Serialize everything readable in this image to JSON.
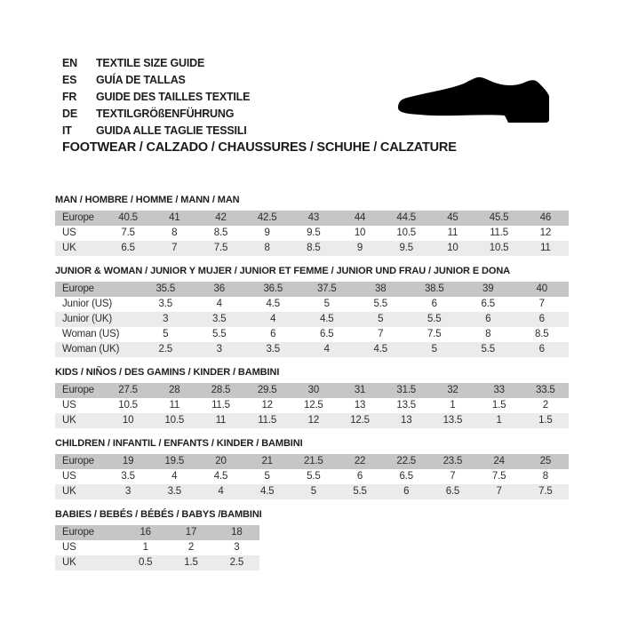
{
  "header": {
    "languages": [
      {
        "code": "EN",
        "label": "TEXTILE SIZE GUIDE"
      },
      {
        "code": "ES",
        "label": "GUÍA DE TALLAS"
      },
      {
        "code": "FR",
        "label": "GUIDE DES TAILLES TEXTILE"
      },
      {
        "code": "DE",
        "label": "TEXTILGRÖßENFÜHRUNG"
      },
      {
        "code": "IT",
        "label": "GUIDA ALLE TAGLIE TESSILI"
      }
    ],
    "category_line": "FOOTWEAR / CALZADO / CHAUSSURES / SCHUHE / CALZATURE",
    "icon": "dress-shoe-silhouette"
  },
  "colors": {
    "header_row_bg": "#c6c6c6",
    "alt_row_bg": "#ebebeb",
    "text": "#2e2e2e",
    "icon": "#000000"
  },
  "tables": [
    {
      "id": "man",
      "title": "MAN / HOMBRE / HOMME / MANN / MAN",
      "rows": [
        {
          "label": "Europe",
          "values": [
            "40.5",
            "41",
            "42",
            "42.5",
            "43",
            "44",
            "44.5",
            "45",
            "45.5",
            "46"
          ]
        },
        {
          "label": "US",
          "values": [
            "7.5",
            "8",
            "8.5",
            "9",
            "9.5",
            "10",
            "10.5",
            "11",
            "11.5",
            "12"
          ]
        },
        {
          "label": "UK",
          "values": [
            "6.5",
            "7",
            "7.5",
            "8",
            "8.5",
            "9",
            "9.5",
            "10",
            "10.5",
            "11"
          ]
        }
      ]
    },
    {
      "id": "junior-woman",
      "title": "JUNIOR & WOMAN / JUNIOR Y MUJER / JUNIOR ET FEMME / JUNIOR UND FRAU / JUNIOR E DONA",
      "rows": [
        {
          "label": "Europe",
          "values": [
            "35.5",
            "36",
            "36.5",
            "37.5",
            "38",
            "38.5",
            "39",
            "40"
          ]
        },
        {
          "label": "Junior (US)",
          "values": [
            "3.5",
            "4",
            "4.5",
            "5",
            "5.5",
            "6",
            "6.5",
            "7"
          ]
        },
        {
          "label": "Junior (UK)",
          "values": [
            "3",
            "3.5",
            "4",
            "4.5",
            "5",
            "5.5",
            "6",
            "6"
          ]
        },
        {
          "label": "Woman (US)",
          "values": [
            "5",
            "5.5",
            "6",
            "6.5",
            "7",
            "7.5",
            "8",
            "8.5"
          ]
        },
        {
          "label": "Woman (UK)",
          "values": [
            "2.5",
            "3",
            "3.5",
            "4",
            "4.5",
            "5",
            "5.5",
            "6"
          ]
        }
      ]
    },
    {
      "id": "kids",
      "title": "KIDS / NIÑOS / DES GAMINS / KINDER / BAMBINI",
      "rows": [
        {
          "label": "Europe",
          "values": [
            "27.5",
            "28",
            "28.5",
            "29.5",
            "30",
            "31",
            "31.5",
            "32",
            "33",
            "33.5"
          ]
        },
        {
          "label": "US",
          "values": [
            "10.5",
            "11",
            "11.5",
            "12",
            "12.5",
            "13",
            "13.5",
            "1",
            "1.5",
            "2"
          ]
        },
        {
          "label": "UK",
          "values": [
            "10",
            "10.5",
            "11",
            "11.5",
            "12",
            "12.5",
            "13",
            "13.5",
            "1",
            "1.5"
          ]
        }
      ]
    },
    {
      "id": "children",
      "title": "CHILDREN / INFANTIL / ENFANTS / KINDER / BAMBINI",
      "rows": [
        {
          "label": "Europe",
          "values": [
            "19",
            "19.5",
            "20",
            "21",
            "21.5",
            "22",
            "22.5",
            "23.5",
            "24",
            "25"
          ]
        },
        {
          "label": "US",
          "values": [
            "3.5",
            "4",
            "4.5",
            "5",
            "5.5",
            "6",
            "6.5",
            "7",
            "7.5",
            "8"
          ]
        },
        {
          "label": "UK",
          "values": [
            "3",
            "3.5",
            "4",
            "4.5",
            "5",
            "5.5",
            "6",
            "6.5",
            "7",
            "7.5"
          ]
        }
      ]
    },
    {
      "id": "babies",
      "title": "BABIES / BEBÉS / BÉBÉS / BABYS /BAMBINI",
      "rows": [
        {
          "label": "Europe",
          "values": [
            "16",
            "17",
            "18"
          ]
        },
        {
          "label": "US",
          "values": [
            "1",
            "2",
            "3"
          ]
        },
        {
          "label": "UK",
          "values": [
            "0.5",
            "1.5",
            "2.5"
          ]
        }
      ]
    }
  ]
}
